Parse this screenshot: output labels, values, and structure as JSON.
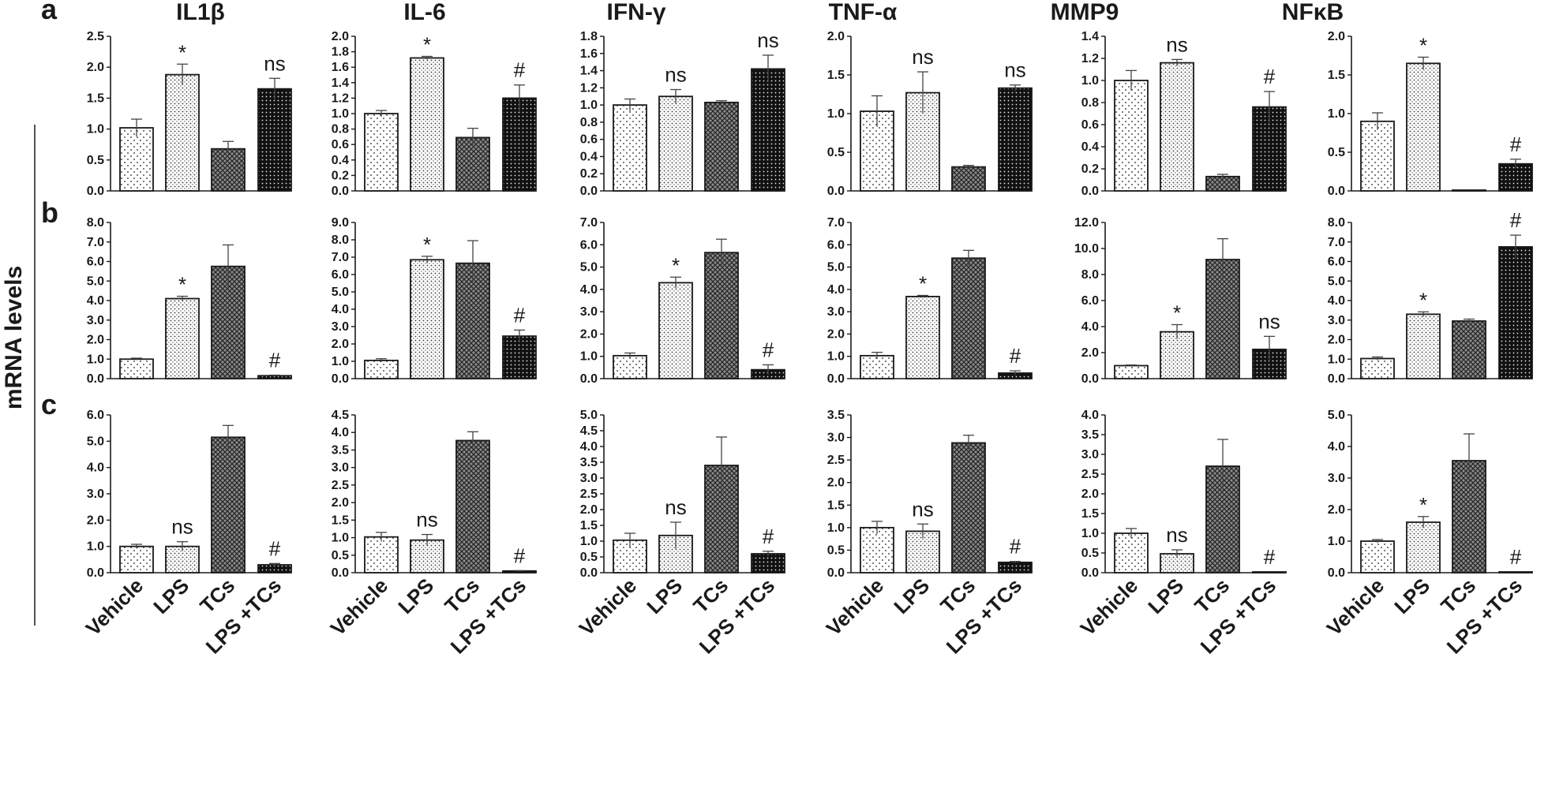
{
  "ylabel": "mRNA levels",
  "categories": [
    "Vehicle",
    "LPS",
    "TCs",
    "LPS +TCs"
  ],
  "columns": [
    "IL1β",
    "IL-6",
    "IFN-γ",
    "TNF-α",
    "MMP9",
    "NFκB"
  ],
  "rows": [
    "a",
    "b",
    "c"
  ],
  "colors": {
    "ink": "#1a1a1a",
    "bar_outline": "#1a1a1a",
    "background": "#ffffff"
  },
  "chart_data": [
    {
      "type": "bar",
      "row": "a",
      "title": "IL1β",
      "categories": [
        "Vehicle",
        "LPS",
        "TCs",
        "LPS +TCs"
      ],
      "values": [
        1.02,
        1.88,
        0.68,
        1.65
      ],
      "errors": [
        0.14,
        0.17,
        0.12,
        0.17
      ],
      "annotations": [
        "",
        "*",
        "",
        "ns"
      ],
      "ylim": [
        0,
        2.5
      ],
      "yticks": [
        "0.0",
        "0.5",
        "1.0",
        "1.5",
        "2.0",
        "2.5"
      ]
    },
    {
      "type": "bar",
      "row": "a",
      "title": "IL-6",
      "categories": [
        "Vehicle",
        "LPS",
        "TCs",
        "LPS +TCs"
      ],
      "values": [
        1.0,
        1.72,
        0.69,
        1.2
      ],
      "errors": [
        0.04,
        0.02,
        0.12,
        0.17
      ],
      "annotations": [
        "",
        "*",
        "",
        "#"
      ],
      "ylim": [
        0,
        2.0
      ],
      "yticks": [
        "0.0",
        "0.2",
        "0.4",
        "0.6",
        "0.8",
        "1.0",
        "1.2",
        "1.4",
        "1.6",
        "1.8",
        "2.0"
      ]
    },
    {
      "type": "bar",
      "row": "a",
      "title": "IFN-γ",
      "categories": [
        "Vehicle",
        "LPS",
        "TCs",
        "LPS +TCs"
      ],
      "values": [
        1.0,
        1.1,
        1.03,
        1.42
      ],
      "errors": [
        0.07,
        0.08,
        0.02,
        0.16
      ],
      "annotations": [
        "",
        "ns",
        "",
        "ns"
      ],
      "ylim": [
        0,
        1.8
      ],
      "yticks": [
        "0.0",
        "0.2",
        "0.4",
        "0.6",
        "0.8",
        "1.0",
        "1.2",
        "1.4",
        "1.6",
        "1.8"
      ]
    },
    {
      "type": "bar",
      "row": "a",
      "title": "TNF-α",
      "categories": [
        "Vehicle",
        "LPS",
        "TCs",
        "LPS +TCs"
      ],
      "values": [
        1.03,
        1.27,
        0.31,
        1.33
      ],
      "errors": [
        0.2,
        0.27,
        0.02,
        0.04
      ],
      "annotations": [
        "",
        "ns",
        "",
        "ns"
      ],
      "ylim": [
        0,
        2.0
      ],
      "yticks": [
        "0.0",
        "0.5",
        "1.0",
        "1.5",
        "2.0"
      ]
    },
    {
      "type": "bar",
      "row": "a",
      "title": "MMP9",
      "categories": [
        "Vehicle",
        "LPS",
        "TCs",
        "LPS +TCs"
      ],
      "values": [
        1.0,
        1.16,
        0.13,
        0.76
      ],
      "errors": [
        0.09,
        0.03,
        0.02,
        0.14
      ],
      "annotations": [
        "",
        "ns",
        "",
        "#"
      ],
      "ylim": [
        0,
        1.4
      ],
      "yticks": [
        "0.0",
        "0.2",
        "0.4",
        "0.6",
        "0.8",
        "1.0",
        "1.2",
        "1.4"
      ]
    },
    {
      "type": "bar",
      "row": "a",
      "title": "NFκB",
      "categories": [
        "Vehicle",
        "LPS",
        "TCs",
        "LPS +TCs"
      ],
      "values": [
        0.9,
        1.65,
        0.01,
        0.35
      ],
      "errors": [
        0.11,
        0.08,
        0.0,
        0.06
      ],
      "annotations": [
        "",
        "*",
        "",
        "#"
      ],
      "ylim": [
        0,
        2.0
      ],
      "yticks": [
        "0.0",
        "0.5",
        "1.0",
        "1.5",
        "2.0"
      ]
    },
    {
      "type": "bar",
      "row": "b",
      "title": "IL1β",
      "categories": [
        "Vehicle",
        "LPS",
        "TCs",
        "LPS +TCs"
      ],
      "values": [
        1.0,
        4.1,
        5.75,
        0.15
      ],
      "errors": [
        0.05,
        0.12,
        1.1,
        0.03
      ],
      "annotations": [
        "",
        "*",
        "",
        "#"
      ],
      "ylim": [
        0,
        8.0
      ],
      "yticks": [
        "0.0",
        "1.0",
        "2.0",
        "3.0",
        "4.0",
        "5.0",
        "6.0",
        "7.0",
        "8.0"
      ]
    },
    {
      "type": "bar",
      "row": "b",
      "title": "IL-6",
      "categories": [
        "Vehicle",
        "LPS",
        "TCs",
        "LPS +TCs"
      ],
      "values": [
        1.05,
        6.85,
        6.65,
        2.45
      ],
      "errors": [
        0.1,
        0.2,
        1.3,
        0.35
      ],
      "annotations": [
        "",
        "*",
        "",
        "#"
      ],
      "ylim": [
        0,
        9.0
      ],
      "yticks": [
        "0.0",
        "1.0",
        "2.0",
        "3.0",
        "4.0",
        "5.0",
        "6.0",
        "7.0",
        "8.0",
        "9.0"
      ]
    },
    {
      "type": "bar",
      "row": "b",
      "title": "IFN-γ",
      "categories": [
        "Vehicle",
        "LPS",
        "TCs",
        "LPS +TCs"
      ],
      "values": [
        1.03,
        4.3,
        5.65,
        0.4
      ],
      "errors": [
        0.12,
        0.25,
        0.6,
        0.22
      ],
      "annotations": [
        "",
        "*",
        "",
        "#"
      ],
      "ylim": [
        0,
        7.0
      ],
      "yticks": [
        "0.0",
        "1.0",
        "2.0",
        "3.0",
        "4.0",
        "5.0",
        "6.0",
        "7.0"
      ]
    },
    {
      "type": "bar",
      "row": "b",
      "title": "TNF-α",
      "categories": [
        "Vehicle",
        "LPS",
        "TCs",
        "LPS +TCs"
      ],
      "values": [
        1.03,
        3.68,
        5.4,
        0.25
      ],
      "errors": [
        0.15,
        0.05,
        0.35,
        0.1
      ],
      "annotations": [
        "",
        "*",
        "",
        "#"
      ],
      "ylim": [
        0,
        7.0
      ],
      "yticks": [
        "0.0",
        "1.0",
        "2.0",
        "3.0",
        "4.0",
        "5.0",
        "6.0",
        "7.0"
      ]
    },
    {
      "type": "bar",
      "row": "b",
      "title": "MMP9",
      "categories": [
        "Vehicle",
        "LPS",
        "TCs",
        "LPS +TCs"
      ],
      "values": [
        1.0,
        3.6,
        9.15,
        2.25
      ],
      "errors": [
        0.05,
        0.55,
        1.6,
        1.0
      ],
      "annotations": [
        "",
        "*",
        "",
        "ns"
      ],
      "ylim": [
        0,
        12.0
      ],
      "yticks": [
        "0.0",
        "2.0",
        "4.0",
        "6.0",
        "8.0",
        "10.0",
        "12.0"
      ]
    },
    {
      "type": "bar",
      "row": "b",
      "title": "NFκB",
      "categories": [
        "Vehicle",
        "LPS",
        "TCs",
        "LPS +TCs"
      ],
      "values": [
        1.03,
        3.3,
        2.95,
        6.75
      ],
      "errors": [
        0.08,
        0.12,
        0.1,
        0.6
      ],
      "annotations": [
        "",
        "*",
        "",
        "#"
      ],
      "ylim": [
        0,
        8.0
      ],
      "yticks": [
        "0.0",
        "1.0",
        "2.0",
        "3.0",
        "4.0",
        "5.0",
        "6.0",
        "7.0",
        "8.0"
      ]
    },
    {
      "type": "bar",
      "row": "c",
      "title": "IL1β",
      "categories": [
        "Vehicle",
        "LPS",
        "TCs",
        "LPS +TCs"
      ],
      "values": [
        1.0,
        1.0,
        5.15,
        0.3
      ],
      "errors": [
        0.08,
        0.18,
        0.45,
        0.05
      ],
      "annotations": [
        "",
        "ns",
        "",
        "#"
      ],
      "ylim": [
        0,
        6.0
      ],
      "yticks": [
        "0.0",
        "1.0",
        "2.0",
        "3.0",
        "4.0",
        "5.0",
        "6.0"
      ]
    },
    {
      "type": "bar",
      "row": "c",
      "title": "IL-6",
      "categories": [
        "Vehicle",
        "LPS",
        "TCs",
        "LPS +TCs"
      ],
      "values": [
        1.02,
        0.93,
        3.77,
        0.05
      ],
      "errors": [
        0.13,
        0.16,
        0.25,
        0.01
      ],
      "annotations": [
        "",
        "ns",
        "",
        "#"
      ],
      "ylim": [
        0,
        4.5
      ],
      "yticks": [
        "0.0",
        "0.5",
        "1.0",
        "1.5",
        "2.0",
        "2.5",
        "3.0",
        "3.5",
        "4.0",
        "4.5"
      ]
    },
    {
      "type": "bar",
      "row": "c",
      "title": "IFN-γ",
      "categories": [
        "Vehicle",
        "LPS",
        "TCs",
        "LPS +TCs"
      ],
      "values": [
        1.03,
        1.18,
        3.4,
        0.6
      ],
      "errors": [
        0.22,
        0.42,
        0.9,
        0.08
      ],
      "annotations": [
        "",
        "ns",
        "",
        "#"
      ],
      "ylim": [
        0,
        5.0
      ],
      "yticks": [
        "0.0",
        "0.5",
        "1.0",
        "1.5",
        "2.0",
        "2.5",
        "3.0",
        "3.5",
        "4.0",
        "4.5",
        "5.0"
      ]
    },
    {
      "type": "bar",
      "row": "c",
      "title": "TNF-α",
      "categories": [
        "Vehicle",
        "LPS",
        "TCs",
        "LPS +TCs"
      ],
      "values": [
        1.0,
        0.92,
        2.88,
        0.23
      ],
      "errors": [
        0.14,
        0.16,
        0.17,
        0.02
      ],
      "annotations": [
        "",
        "ns",
        "",
        "#"
      ],
      "ylim": [
        0,
        3.5
      ],
      "yticks": [
        "0.0",
        "0.5",
        "1.0",
        "1.5",
        "2.0",
        "2.5",
        "3.0",
        "3.5"
      ]
    },
    {
      "type": "bar",
      "row": "c",
      "title": "MMP9",
      "categories": [
        "Vehicle",
        "LPS",
        "TCs",
        "LPS +TCs"
      ],
      "values": [
        1.0,
        0.48,
        2.7,
        0.02
      ],
      "errors": [
        0.12,
        0.1,
        0.68,
        0.0
      ],
      "annotations": [
        "",
        "ns",
        "",
        "#"
      ],
      "ylim": [
        0,
        4.0
      ],
      "yticks": [
        "0.0",
        "0.5",
        "1.0",
        "1.5",
        "2.0",
        "2.5",
        "3.0",
        "3.5",
        "4.0"
      ]
    },
    {
      "type": "bar",
      "row": "c",
      "title": "NFκB",
      "categories": [
        "Vehicle",
        "LPS",
        "TCs",
        "LPS +TCs"
      ],
      "values": [
        1.0,
        1.6,
        3.55,
        0.02
      ],
      "errors": [
        0.05,
        0.18,
        0.85,
        0.0
      ],
      "annotations": [
        "",
        "*",
        "",
        "#"
      ],
      "ylim": [
        0,
        5.0
      ],
      "yticks": [
        "0.0",
        "1.0",
        "2.0",
        "3.0",
        "4.0",
        "5.0"
      ]
    }
  ]
}
